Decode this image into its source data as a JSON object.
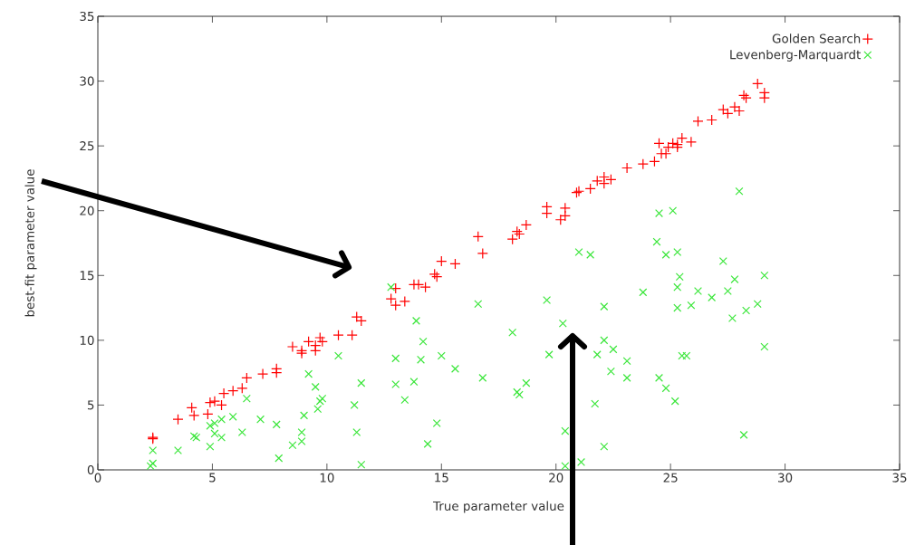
{
  "chart_data": {
    "type": "scatter",
    "xlabel": "True parameter value",
    "ylabel": "best-fit parameter value",
    "xlim": [
      0,
      35
    ],
    "ylim": [
      0,
      35
    ],
    "xticks": [
      0,
      5,
      10,
      15,
      20,
      25,
      30,
      35
    ],
    "yticks": [
      0,
      5,
      10,
      15,
      20,
      25,
      30,
      35
    ],
    "legend": "top right",
    "series": [
      {
        "name": "Golden Search",
        "color": "#ff0000",
        "marker": "plus",
        "x": [
          2.4,
          2.4,
          3.5,
          4.1,
          4.2,
          4.8,
          4.9,
          5.1,
          5.4,
          5.5,
          5.9,
          6.3,
          6.5,
          7.2,
          7.8,
          7.8,
          8.5,
          8.9,
          8.9,
          9.2,
          9.5,
          9.5,
          9.7,
          9.8,
          10.5,
          11.1,
          11.3,
          11.5,
          12.8,
          13.0,
          13.4,
          13.0,
          13.8,
          14.0,
          14.3,
          14.7,
          14.8,
          15.0,
          15.6,
          16.6,
          16.8,
          18.1,
          18.3,
          18.4,
          18.7,
          19.6,
          19.6,
          20.4,
          20.4,
          20.2,
          20.9,
          21.0,
          21.5,
          21.8,
          22.1,
          22.1,
          22.4,
          23.1,
          23.8,
          24.3,
          24.5,
          24.6,
          24.8,
          24.9,
          25.1,
          25.3,
          25.3,
          25.5,
          25.9,
          26.2,
          26.8,
          27.3,
          27.5,
          27.8,
          28.0,
          28.2,
          28.3,
          28.8,
          29.1,
          29.1
        ],
        "values": [
          2.5,
          2.4,
          3.9,
          4.8,
          4.2,
          4.3,
          5.2,
          5.3,
          5.0,
          5.9,
          6.1,
          6.3,
          7.1,
          7.4,
          7.8,
          7.5,
          9.5,
          9.2,
          9.0,
          9.9,
          9.6,
          9.2,
          10.2,
          9.9,
          10.4,
          10.4,
          11.8,
          11.5,
          13.2,
          12.7,
          13.0,
          14.0,
          14.3,
          14.3,
          14.1,
          15.1,
          14.9,
          16.1,
          15.9,
          18.0,
          16.7,
          17.8,
          18.4,
          18.2,
          18.9,
          20.3,
          19.8,
          20.2,
          19.6,
          19.3,
          21.4,
          21.5,
          21.7,
          22.3,
          22.6,
          22.1,
          22.4,
          23.3,
          23.6,
          23.8,
          25.2,
          24.4,
          24.4,
          24.9,
          25.2,
          25.1,
          24.9,
          25.6,
          25.3,
          26.9,
          27.0,
          27.8,
          27.5,
          28.0,
          27.7,
          28.9,
          28.7,
          29.8,
          29.1,
          28.7
        ]
      },
      {
        "name": "Levenberg-Marquardt",
        "color": "#3ce63c",
        "marker": "cross",
        "x": [
          2.4,
          2.4,
          2.3,
          3.5,
          4.2,
          4.3,
          4.9,
          4.9,
          5.1,
          5.1,
          5.4,
          5.4,
          5.9,
          6.3,
          6.5,
          7.1,
          7.8,
          7.9,
          8.5,
          8.9,
          8.9,
          9.0,
          9.2,
          9.5,
          9.6,
          9.7,
          9.8,
          10.5,
          11.2,
          11.3,
          11.5,
          11.5,
          12.8,
          13.9,
          14.2,
          13.0,
          14.1,
          13.0,
          13.8,
          13.4,
          15.0,
          15.6,
          14.8,
          14.4,
          16.6,
          18.1,
          16.8,
          18.7,
          18.3,
          18.4,
          19.6,
          20.3,
          19.7,
          21.0,
          21.5,
          22.1,
          21.8,
          22.1,
          22.5,
          23.1,
          23.1,
          22.4,
          21.7,
          22.1,
          20.4,
          20.4,
          21.1,
          23.8,
          28.0,
          24.5,
          25.1,
          24.4,
          24.8,
          25.3,
          25.4,
          25.3,
          25.3,
          25.9,
          26.2,
          26.8,
          27.3,
          27.5,
          27.8,
          29.1,
          27.7,
          28.3,
          28.8,
          29.1,
          25.5,
          25.7,
          24.5,
          24.8,
          25.2,
          28.2
        ],
        "values": [
          1.5,
          0.5,
          0.3,
          1.5,
          2.6,
          2.5,
          3.4,
          1.8,
          3.6,
          2.8,
          2.5,
          3.9,
          4.1,
          2.9,
          5.5,
          3.9,
          3.5,
          0.9,
          1.9,
          2.9,
          2.2,
          4.2,
          7.4,
          6.4,
          4.7,
          5.3,
          5.5,
          8.8,
          5.0,
          2.9,
          6.7,
          0.4,
          14.1,
          11.5,
          9.9,
          8.6,
          8.5,
          6.6,
          6.8,
          5.4,
          8.8,
          7.8,
          3.6,
          2.0,
          12.8,
          10.6,
          7.1,
          6.7,
          6.0,
          5.8,
          13.1,
          11.3,
          8.9,
          16.8,
          16.6,
          12.6,
          8.9,
          10.0,
          9.3,
          8.4,
          7.1,
          7.6,
          5.1,
          1.8,
          3.0,
          0.3,
          0.6,
          13.7,
          21.5,
          19.8,
          20.0,
          17.6,
          16.6,
          16.8,
          14.9,
          14.1,
          12.5,
          12.7,
          13.8,
          13.3,
          16.1,
          13.8,
          14.7,
          15.0,
          11.7,
          12.3,
          12.8,
          9.5,
          8.8,
          8.8,
          7.1,
          6.3,
          5.3,
          2.7
        ]
      }
    ]
  }
}
